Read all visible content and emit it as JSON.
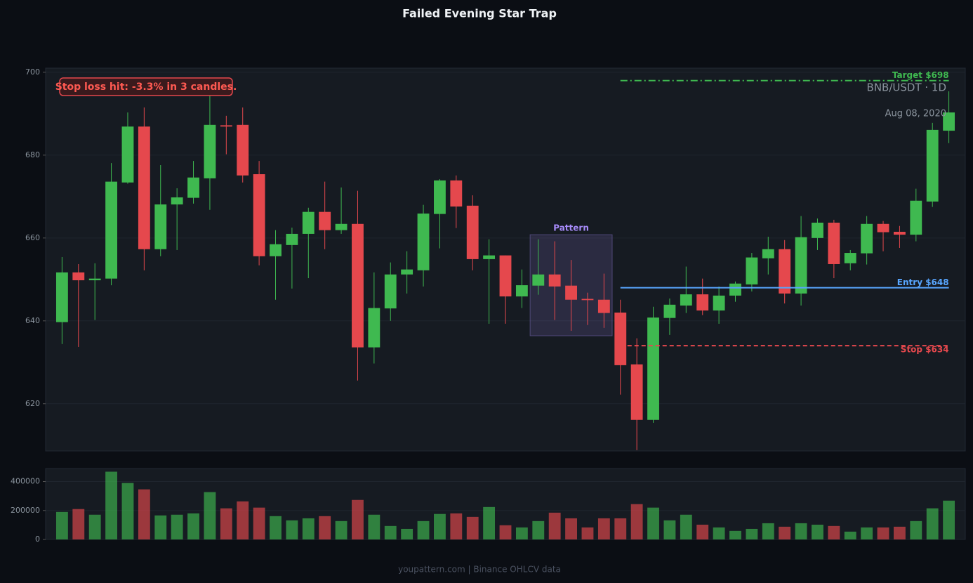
{
  "chart_data": {
    "type": "candlestick",
    "title": "Failed Evening Star Trap",
    "symbol": "BNB/USDT · 1D",
    "date": "Aug 08, 2020",
    "annotation": "Stop loss hit: -3.3% in 3 candles.",
    "footer": "youpattern.com | Binance OHLCV data",
    "up_color": "#3fb950",
    "down_color": "#e5484d",
    "open": [
      639.7,
      651.7,
      649.8,
      650.2,
      673.4,
      686.9,
      657.3,
      668.1,
      669.7,
      674.4,
      687.2,
      687.3,
      675.4,
      655.6,
      658.3,
      661.0,
      666.3,
      661.9,
      663.4,
      633.6,
      643.0,
      651.2,
      652.2,
      665.8,
      673.9,
      667.8,
      654.9,
      655.8,
      645.9,
      648.5,
      651.2,
      648.5,
      645.3,
      645.1,
      642.0,
      629.5,
      616.1,
      640.7,
      643.7,
      646.4,
      642.5,
      646.1,
      648.8,
      655.1,
      657.3,
      646.6,
      660.0,
      663.7,
      653.9,
      656.3,
      663.4,
      661.5,
      660.8,
      668.8,
      685.9
    ],
    "high": [
      655.4,
      653.7,
      653.9,
      678.1,
      690.3,
      691.5,
      677.6,
      672.0,
      678.6,
      694.4,
      689.5,
      691.5,
      678.6,
      661.9,
      662.5,
      667.3,
      673.6,
      672.2,
      671.4,
      651.7,
      654.1,
      656.8,
      668.0,
      674.2,
      675.1,
      670.3,
      659.7,
      655.8,
      652.4,
      659.7,
      659.2,
      654.7,
      646.8,
      651.4,
      645.1,
      635.8,
      643.4,
      645.4,
      653.1,
      650.2,
      648.3,
      649.5,
      656.4,
      660.3,
      659.5,
      665.3,
      664.7,
      664.4,
      657.1,
      665.3,
      664.1,
      662.9,
      671.9,
      687.8,
      695.4
    ],
    "low": [
      634.4,
      633.7,
      640.2,
      648.6,
      673.1,
      652.2,
      655.6,
      657.1,
      668.3,
      666.8,
      680.2,
      673.4,
      653.4,
      645.1,
      647.8,
      650.3,
      657.3,
      661.0,
      625.6,
      629.7,
      640.0,
      646.6,
      648.3,
      657.5,
      662.4,
      652.2,
      639.3,
      639.3,
      643.1,
      646.3,
      640.2,
      637.6,
      639.0,
      638.3,
      622.2,
      608.8,
      615.4,
      636.6,
      641.9,
      641.4,
      639.3,
      644.6,
      647.1,
      651.2,
      644.2,
      643.7,
      657.1,
      650.3,
      652.2,
      653.6,
      656.8,
      657.6,
      659.2,
      667.5,
      682.9
    ],
    "close": [
      651.7,
      649.8,
      650.2,
      673.6,
      686.9,
      657.3,
      668.1,
      669.8,
      674.6,
      687.3,
      686.9,
      675.1,
      655.6,
      658.5,
      661.0,
      666.3,
      661.9,
      663.4,
      633.6,
      643.1,
      651.2,
      652.4,
      665.9,
      673.9,
      667.6,
      654.9,
      655.8,
      645.9,
      648.6,
      651.2,
      648.3,
      645.1,
      645.0,
      641.9,
      629.3,
      616.1,
      640.8,
      643.9,
      646.4,
      642.5,
      646.1,
      649.0,
      655.3,
      657.3,
      646.6,
      660.2,
      663.7,
      653.7,
      656.4,
      663.4,
      661.4,
      660.8,
      669.0,
      686.1,
      690.3
    ],
    "volume": [
      190000,
      210000,
      171000,
      468000,
      390000,
      346000,
      166000,
      171000,
      180000,
      327000,
      215000,
      263000,
      220000,
      161000,
      132000,
      146000,
      161000,
      127000,
      273000,
      171000,
      93000,
      73000,
      127000,
      176000,
      180000,
      156000,
      224000,
      98000,
      83000,
      127000,
      185000,
      146000,
      83000,
      146000,
      146000,
      244000,
      220000,
      132000,
      171000,
      102000,
      83000,
      59000,
      73000,
      112000,
      88000,
      112000,
      102000,
      93000,
      54000,
      83000,
      83000,
      88000,
      127000,
      215000,
      268000
    ],
    "xlim": [
      -1,
      55
    ],
    "ylim": [
      608.6,
      701
    ],
    "yticks": [
      620,
      640,
      660,
      680,
      700
    ],
    "volume_ylim": [
      0,
      490000
    ],
    "volume_yticks": [
      0,
      200000,
      400000
    ],
    "levels": [
      {
        "label": "Target $698",
        "value": 698,
        "color": "#3fb950",
        "style": "dashdot",
        "x_start": 34
      },
      {
        "label": "Entry $648",
        "value": 648,
        "color": "#58a6ff",
        "style": "solid",
        "x_start": 34
      },
      {
        "label": "Stop $634",
        "value": 634,
        "color": "#e5484d",
        "style": "dashed",
        "x_start": 34
      }
    ],
    "pattern": {
      "label": "Pattern",
      "x_range": [
        29,
        33
      ],
      "y_range": [
        636.4,
        660.8
      ],
      "color": "#a78bfa"
    },
    "grid": true
  }
}
